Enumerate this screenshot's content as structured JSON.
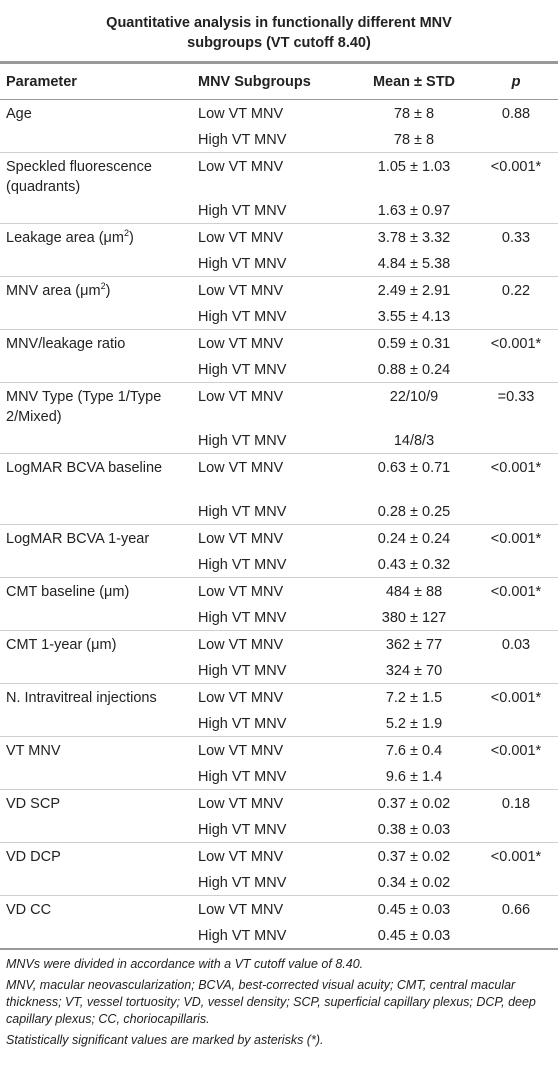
{
  "caption": {
    "line1": "Quantitative analysis in functionally different MNV",
    "line2": "subgroups (VT cutoff 8.40)"
  },
  "headers": {
    "parameter": "Parameter",
    "subgroups": "MNV Subgroups",
    "mean_std": "Mean ± STD",
    "p": "p"
  },
  "rows": [
    {
      "param": "Age",
      "low": "Low VT MNV",
      "low_val": "78 ± 8",
      "p": "0.88",
      "high": "High VT MNV",
      "high_val": "78 ± 8"
    },
    {
      "param": "Speckled fluorescence (quadrants)",
      "low": "Low VT MNV",
      "low_val": "1.05 ± 1.03",
      "p": "<0.001*",
      "high": "High VT MNV",
      "high_val": "1.63 ± 0.97"
    },
    {
      "param": "Leakage area (μm",
      "param_sup": "2",
      "param_end": ")",
      "low": "Low VT MNV",
      "low_val": "3.78 ± 3.32",
      "p": "0.33",
      "high": "High VT MNV",
      "high_val": "4.84 ± 5.38"
    },
    {
      "param": "MNV area (μm",
      "param_sup": "2",
      "param_end": ")",
      "low": "Low VT MNV",
      "low_val": "2.49 ± 2.91",
      "p": "0.22",
      "high": "High VT MNV",
      "high_val": "3.55 ± 4.13"
    },
    {
      "param": "MNV/leakage ratio",
      "low": "Low VT MNV",
      "low_val": "0.59 ± 0.31",
      "p": "<0.001*",
      "high": "High VT MNV",
      "high_val": "0.88 ± 0.24"
    },
    {
      "param": "MNV Type (Type 1/Type 2/Mixed)",
      "low": "Low VT MNV",
      "low_val": "22/10/9",
      "p": "=0.33",
      "high": "High VT MNV",
      "high_val": "14/8/3"
    },
    {
      "param": "LogMAR BCVA baseline",
      "low": "Low VT MNV",
      "low_val": "0.63 ± 0.71",
      "p": "<0.001*",
      "high": "High VT MNV",
      "high_val": "0.28 ± 0.25"
    },
    {
      "param": "LogMAR BCVA 1-year",
      "low": "Low VT MNV",
      "low_val": "0.24 ± 0.24",
      "p": "<0.001*",
      "high": "High VT MNV",
      "high_val": "0.43 ± 0.32"
    },
    {
      "param": "CMT baseline (μm)",
      "low": "Low VT MNV",
      "low_val": "484 ± 88",
      "p": "<0.001*",
      "high": "High VT MNV",
      "high_val": "380 ± 127"
    },
    {
      "param": "CMT 1-year (μm)",
      "low": "Low VT MNV",
      "low_val": "362 ± 77",
      "p": "0.03",
      "high": "High VT MNV",
      "high_val": "324 ± 70"
    },
    {
      "param": "N. Intravitreal injections",
      "low": "Low VT MNV",
      "low_val": "7.2 ± 1.5",
      "p": "<0.001*",
      "high": "High VT MNV",
      "high_val": "5.2 ± 1.9"
    },
    {
      "param": "VT MNV",
      "low": "Low VT MNV",
      "low_val": "7.6 ± 0.4",
      "p": "<0.001*",
      "high": "High VT MNV",
      "high_val": "9.6 ± 1.4"
    },
    {
      "param": "VD SCP",
      "low": "Low VT MNV",
      "low_val": "0.37 ± 0.02",
      "p": "0.18",
      "high": "High VT MNV",
      "high_val": "0.38 ± 0.03"
    },
    {
      "param": "VD DCP",
      "low": "Low VT MNV",
      "low_val": "0.37 ± 0.02",
      "p": "<0.001*",
      "high": "High VT MNV",
      "high_val": "0.34 ± 0.02"
    },
    {
      "param": "VD CC",
      "low": "Low VT MNV",
      "low_val": "0.45 ± 0.03",
      "p": "0.66",
      "high": "High VT MNV",
      "high_val": "0.45 ± 0.03"
    }
  ],
  "tall_rows": [
    1,
    5,
    6
  ],
  "notes": [
    "MNVs were divided in accordance with a VT cutoff value of 8.40.",
    "MNV, macular neovascularization; BCVA, best-corrected visual acuity; CMT, central macular thickness; VT, vessel tortuosity; VD, vessel density; SCP, superficial capillary plexus; DCP, deep capillary plexus; CC, choriocapillaris.",
    "Statistically significant values are marked by asterisks (*)."
  ]
}
